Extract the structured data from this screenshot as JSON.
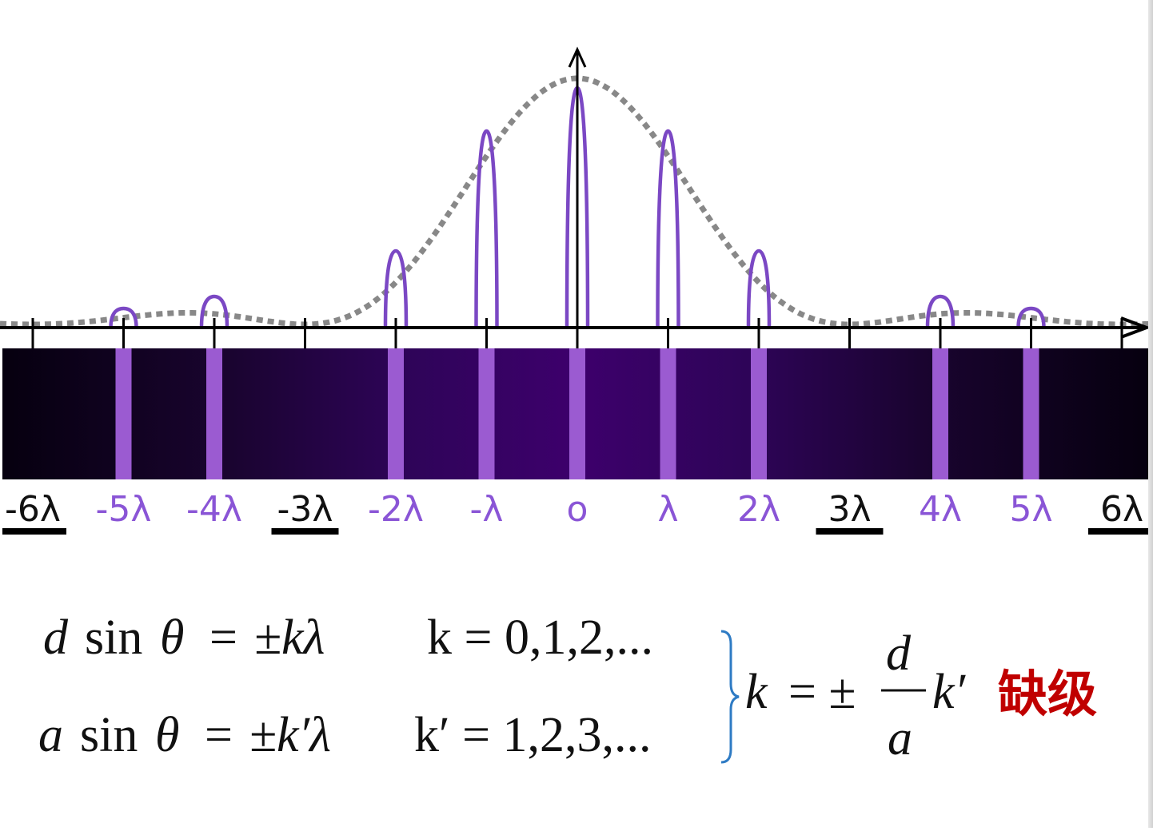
{
  "diagram": {
    "colors": {
      "purple_line": "#7b48c4",
      "envelope": "#888888",
      "axis": "#000000",
      "screen_dark": "#06000f",
      "screen_center": "#3b0068",
      "fringe": "#9b5bd1",
      "label_purple": "#8a55d6",
      "label_black": "#111111",
      "missing_order_text": "#c00000",
      "brace": "#2e7bc4"
    },
    "orders": [
      {
        "k": -6,
        "label": "-6λ",
        "fringe": false,
        "missing": true,
        "intensity": 0
      },
      {
        "k": -5,
        "label": "-5λ",
        "fringe": true,
        "missing": false,
        "intensity": 0.08
      },
      {
        "k": -4,
        "label": "-4λ",
        "fringe": true,
        "missing": false,
        "intensity": 0.13
      },
      {
        "k": -3,
        "label": "-3λ",
        "fringe": false,
        "missing": true,
        "intensity": 0
      },
      {
        "k": -2,
        "label": "-2λ",
        "fringe": true,
        "missing": false,
        "intensity": 0.32
      },
      {
        "k": -1,
        "label": "-λ",
        "fringe": true,
        "missing": false,
        "intensity": 0.82
      },
      {
        "k": 0,
        "label": "o",
        "fringe": true,
        "missing": false,
        "intensity": 1.0
      },
      {
        "k": 1,
        "label": "λ",
        "fringe": true,
        "missing": false,
        "intensity": 0.82
      },
      {
        "k": 2,
        "label": "2λ",
        "fringe": true,
        "missing": false,
        "intensity": 0.32
      },
      {
        "k": 3,
        "label": "3λ",
        "fringe": false,
        "missing": true,
        "intensity": 0
      },
      {
        "k": 4,
        "label": "4λ",
        "fringe": true,
        "missing": false,
        "intensity": 0.13
      },
      {
        "k": 5,
        "label": "5λ",
        "fringe": true,
        "missing": false,
        "intensity": 0.08
      },
      {
        "k": 6,
        "label": "6λ",
        "fringe": false,
        "missing": true,
        "intensity": 0
      }
    ],
    "missing_period": 3
  },
  "equations": {
    "grating": {
      "lhs_var": "d",
      "sin": "sin",
      "theta": "θ",
      "eq": "=",
      "rhs": "±kλ",
      "k_def": "k = 0,1,2,..."
    },
    "single_slit": {
      "lhs_var": "a",
      "sin": "sin",
      "theta": "θ",
      "eq": "=",
      "rhs": "±k′λ",
      "k_def": "k′ = 1,2,3,..."
    },
    "result": {
      "lhs": "k",
      "eq": "= ±",
      "numerator": "d",
      "denominator": "a",
      "rhs": "k′"
    },
    "missing_orders_label": "缺级"
  }
}
